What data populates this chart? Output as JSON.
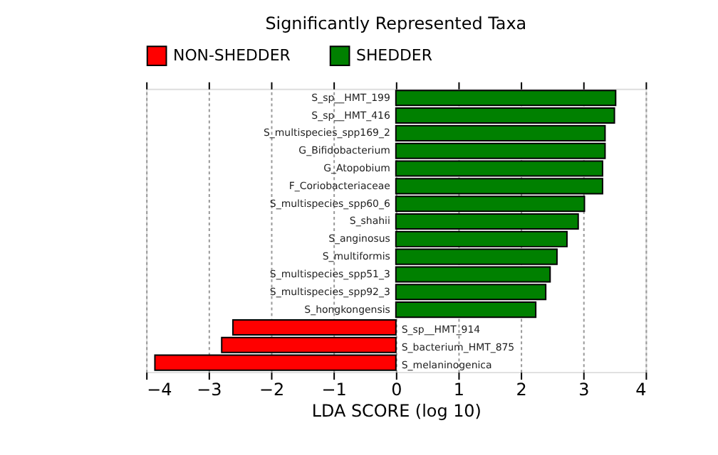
{
  "chart_data": {
    "type": "bar",
    "orientation": "horizontal",
    "title": "Significantly Represented Taxa",
    "xlabel": "LDA SCORE (log 10)",
    "categories": [
      "S_sp__HMT_199",
      "S_sp__HMT_416",
      "S_multispecies_spp169_2",
      "G_Bifidobacterium",
      "G_Atopobium",
      "F_Coriobacteriaceae",
      "S_multispecies_spp60_6",
      "S_shahii",
      "S_anginosus",
      "S_multiformis",
      "S_multispecies_spp51_3",
      "S_multispecies_spp92_3",
      "S_hongkongensis",
      "S_sp__HMT_914",
      "S_bacterium_HMT_875",
      "S_melaninogenica"
    ],
    "series": [
      {
        "name": "NON-SHEDDER",
        "color": "#ff0000",
        "values": [
          null,
          null,
          null,
          null,
          null,
          null,
          null,
          null,
          null,
          null,
          null,
          null,
          null,
          -2.61,
          -2.79,
          -3.86
        ]
      },
      {
        "name": "SHEDDER",
        "color": "#008000",
        "values": [
          3.52,
          3.5,
          3.35,
          3.35,
          3.31,
          3.31,
          3.02,
          2.92,
          2.74,
          2.58,
          2.47,
          2.4,
          2.24,
          null,
          null,
          null
        ]
      }
    ],
    "xlim": [
      -4,
      4
    ],
    "xticks": [
      -4,
      -3,
      -2,
      -1,
      0,
      1,
      2,
      3,
      4
    ],
    "grid": "x",
    "legend": "top left",
    "tick_labels": "x"
  }
}
